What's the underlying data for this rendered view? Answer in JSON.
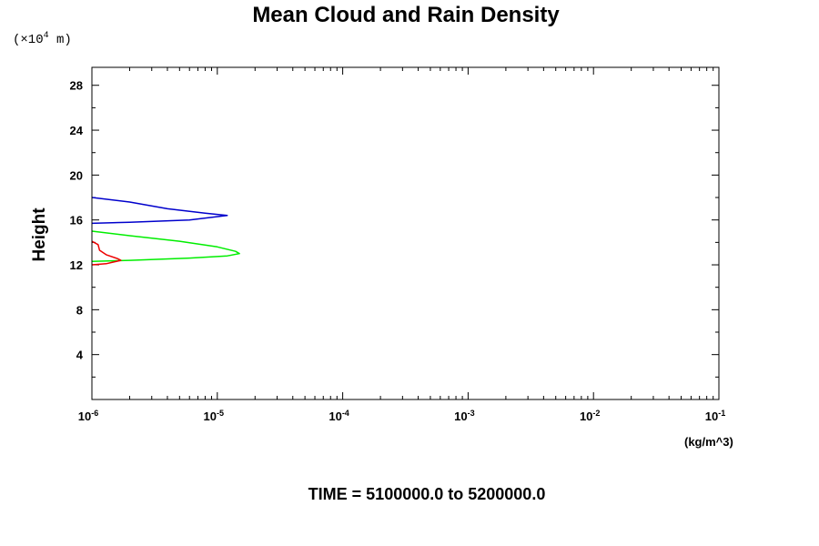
{
  "chart_data": {
    "type": "line",
    "title": "Mean Cloud and Rain Density",
    "xlabel": "(kg/m^3)",
    "ylabel": "Height",
    "y_scale_label": "(×10",
    "y_scale_exp": "4",
    "y_scale_unit": " m)",
    "x_scale": "log",
    "xlim": [
      1e-06,
      0.1
    ],
    "ylim": [
      0,
      29.6
    ],
    "x_ticks": [
      {
        "base": "10",
        "exp": "-6",
        "value": 1e-06
      },
      {
        "base": "10",
        "exp": "-5",
        "value": 1e-05
      },
      {
        "base": "10",
        "exp": "-4",
        "value": 0.0001
      },
      {
        "base": "10",
        "exp": "-3",
        "value": 0.001
      },
      {
        "base": "10",
        "exp": "-2",
        "value": 0.01
      },
      {
        "base": "10",
        "exp": "-1",
        "value": 0.1
      }
    ],
    "y_ticks": [
      "4",
      "8",
      "12",
      "16",
      "20",
      "24",
      "28"
    ],
    "grid": false,
    "legend": "none",
    "series": [
      {
        "color": "#0000cc",
        "points": [
          [
            1e-06,
            18.0
          ],
          [
            2e-06,
            17.6
          ],
          [
            4e-06,
            17.0
          ],
          [
            8e-06,
            16.6
          ],
          [
            1.2e-05,
            16.4
          ],
          [
            6e-06,
            16.0
          ],
          [
            2e-06,
            15.8
          ],
          [
            1e-06,
            15.7
          ]
        ]
      },
      {
        "color": "#00ee00",
        "points": [
          [
            1e-06,
            15.0
          ],
          [
            2e-06,
            14.6
          ],
          [
            5e-06,
            14.1
          ],
          [
            1e-05,
            13.6
          ],
          [
            1.4e-05,
            13.2
          ],
          [
            1.5e-05,
            13.0
          ],
          [
            1.2e-05,
            12.8
          ],
          [
            6e-06,
            12.6
          ],
          [
            2e-06,
            12.4
          ],
          [
            1e-06,
            12.3
          ]
        ]
      },
      {
        "color": "#ee0000",
        "points": [
          [
            1e-06,
            14.1
          ],
          [
            1.12e-06,
            13.8
          ],
          [
            1.15e-06,
            13.3
          ],
          [
            1.3e-06,
            12.9
          ],
          [
            1.6e-06,
            12.55
          ],
          [
            1.7e-06,
            12.4
          ],
          [
            1.3e-06,
            12.1
          ],
          [
            1e-06,
            12.0
          ]
        ]
      }
    ]
  },
  "footer": "TIME = 5100000.0 to 5200000.0"
}
